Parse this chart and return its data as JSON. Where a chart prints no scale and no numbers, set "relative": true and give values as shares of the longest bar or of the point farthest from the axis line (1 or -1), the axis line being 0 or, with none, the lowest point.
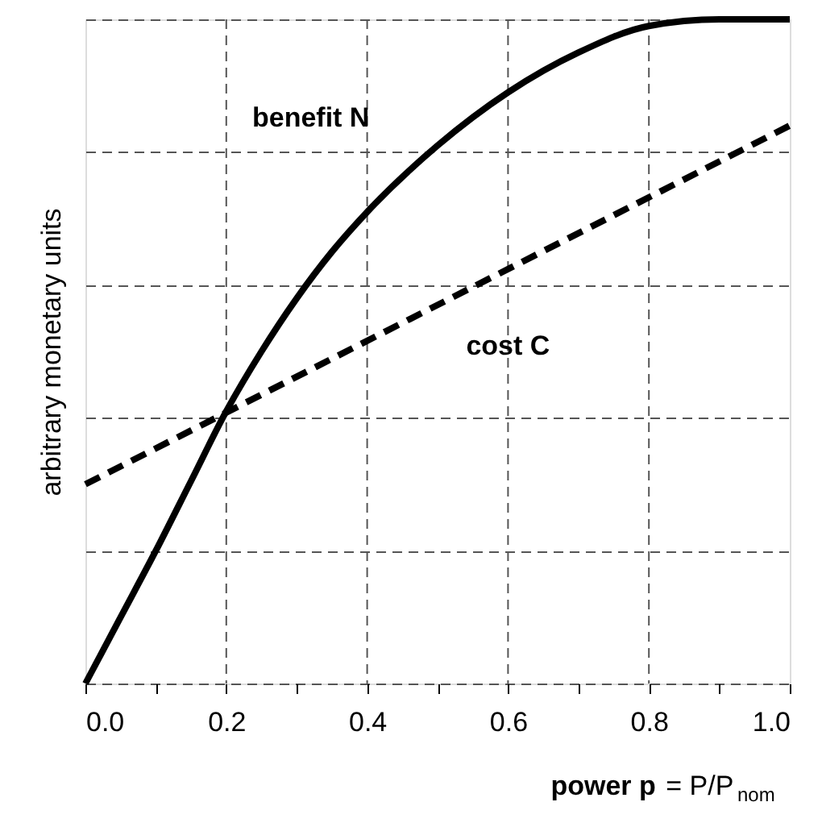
{
  "chart_data": {
    "type": "line",
    "relative": true,
    "ylabel": "arbitrary monetary units",
    "xlabel": "power p = P/P$_{nom}$",
    "xlim": [
      0,
      1
    ],
    "xticks": [
      {
        "value": 0,
        "label": "0.0"
      },
      {
        "value": 0.1,
        "label": null
      },
      {
        "value": 0.2,
        "label": "0.2"
      },
      {
        "value": 0.3,
        "label": null
      },
      {
        "value": 0.4,
        "label": "0.4"
      },
      {
        "value": 0.5,
        "label": null
      },
      {
        "value": 0.6,
        "label": "0.6"
      },
      {
        "value": 0.7,
        "label": null
      },
      {
        "value": 0.8,
        "label": "0.8"
      },
      {
        "value": 0.9,
        "label": null
      },
      {
        "value": 1,
        "label": "1.0"
      }
    ],
    "grid": true,
    "legend": false,
    "marker": "none",
    "series": [
      {
        "name": "benefit N",
        "color": "#000000",
        "line_style": "solid",
        "x": [
          0,
          0.05,
          0.1,
          0.15,
          0.2,
          0.25,
          0.3,
          0.35,
          0.4,
          0.5,
          0.6,
          0.7,
          0.8,
          0.9,
          1.0
        ],
        "values": [
          0,
          0.1,
          0.2,
          0.305,
          0.41,
          0.5,
          0.58,
          0.65,
          0.71,
          0.81,
          0.89,
          0.95,
          0.99,
          1.0,
          1.0
        ]
      },
      {
        "name": "cost C",
        "color": "#000000",
        "line_style": "dashed",
        "x": [
          0,
          1
        ],
        "values": [
          0.3,
          0.84
        ]
      }
    ]
  }
}
